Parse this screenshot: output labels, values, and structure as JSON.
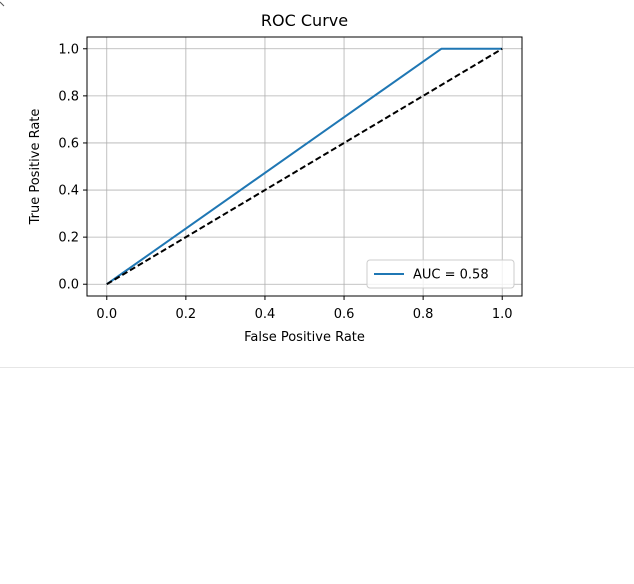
{
  "chart_data": {
    "type": "line",
    "title": "ROC Curve",
    "xlabel": "False Positive Rate",
    "ylabel": "True Positive Rate",
    "xlim": [
      -0.05,
      1.05
    ],
    "ylim": [
      -0.05,
      1.05
    ],
    "xticks": [
      0.0,
      0.2,
      0.4,
      0.6,
      0.8,
      1.0
    ],
    "xtick_labels": [
      "0.0",
      "0.2",
      "0.4",
      "0.6",
      "0.8",
      "1.0"
    ],
    "yticks": [
      0.0,
      0.2,
      0.4,
      0.6,
      0.8,
      1.0
    ],
    "ytick_labels": [
      "0.0",
      "0.2",
      "0.4",
      "0.6",
      "0.8",
      "1.0"
    ],
    "grid": true,
    "legend_position": "lower right",
    "series": [
      {
        "name": "AUC = 0.58",
        "color": "#1f77b4",
        "style": "solid",
        "x": [
          0.0,
          0.846,
          1.0
        ],
        "y": [
          0.0,
          1.0,
          1.0
        ]
      },
      {
        "color": "#000000",
        "style": "dashed",
        "x": [
          0.0,
          1.0
        ],
        "y": [
          0.0,
          1.0
        ]
      }
    ]
  }
}
